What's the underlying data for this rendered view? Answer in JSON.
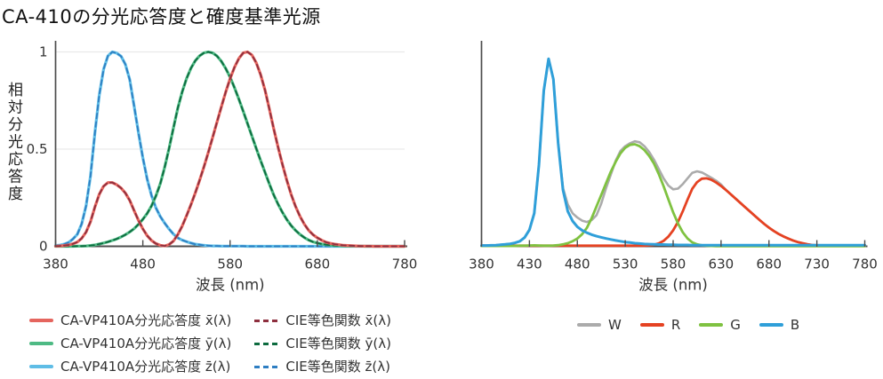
{
  "title": "CA-410の分光応答度と確度基準光源",
  "colors": {
    "axis": "#4d4d4d",
    "grid": "#e9e9e9",
    "tick_text": "#333333",
    "title_text": "#111111",
    "background": "#ffffff"
  },
  "chart_data": [
    {
      "id": "left",
      "type": "line",
      "xlabel": "波長 (nm)",
      "ylabel": "相対分光応答度",
      "xlim": [
        380,
        780
      ],
      "ylim": [
        0,
        1.05
      ],
      "x_ticks": [
        380,
        480,
        580,
        680,
        780
      ],
      "y_ticks": [
        0,
        0.5,
        1
      ],
      "grid_y": [
        0.5,
        1
      ],
      "grid": "horizontal-only",
      "legend_position": "below",
      "x_start": 380,
      "x_step": 5,
      "legend_order": [
        4,
        5,
        2,
        3,
        0,
        1
      ],
      "series": [
        {
          "name": "CA-VP410A分光応答度 z̄(λ)",
          "color": "#5fbde6",
          "style": "solid",
          "width": 3.2,
          "values": [
            0.004,
            0.006,
            0.011,
            0.02,
            0.038,
            0.062,
            0.116,
            0.208,
            0.362,
            0.583,
            0.777,
            0.911,
            0.98,
            1,
            0.994,
            0.978,
            0.936,
            0.857,
            0.722,
            0.585,
            0.456,
            0.346,
            0.261,
            0.198,
            0.153,
            0.119,
            0.089,
            0.063,
            0.044,
            0.032,
            0.024,
            0.017,
            0.011,
            0.008,
            0.005,
            0.003,
            0.002,
            0.002,
            0.001,
            0.001,
            0.001,
            0.001,
            0.001,
            0.001,
            0,
            0,
            0,
            0,
            0,
            0,
            0,
            0,
            0,
            0,
            0,
            0,
            0,
            0,
            0,
            0,
            0,
            0,
            0,
            0,
            0,
            0,
            0,
            0,
            0,
            0,
            0,
            0,
            0,
            0,
            0,
            0,
            0,
            0,
            0,
            0,
            0
          ]
        },
        {
          "name": "CIE等色関数 z̄(λ)",
          "color": "#2e7ec2",
          "style": "dashed",
          "width": 1.8,
          "same_values_as": 0
        },
        {
          "name": "CA-VP410A分光応答度 ȳ(λ)",
          "color": "#4eba84",
          "style": "solid",
          "width": 3.2,
          "values": [
            0,
            0,
            0,
            0,
            0,
            0.001,
            0.001,
            0.002,
            0.004,
            0.007,
            0.012,
            0.017,
            0.023,
            0.03,
            0.038,
            0.048,
            0.06,
            0.074,
            0.091,
            0.113,
            0.139,
            0.169,
            0.208,
            0.259,
            0.323,
            0.407,
            0.503,
            0.608,
            0.71,
            0.793,
            0.862,
            0.915,
            0.954,
            0.98,
            0.995,
            1,
            0.995,
            0.979,
            0.952,
            0.915,
            0.87,
            0.816,
            0.757,
            0.695,
            0.631,
            0.567,
            0.503,
            0.441,
            0.381,
            0.321,
            0.265,
            0.217,
            0.175,
            0.138,
            0.107,
            0.082,
            0.061,
            0.045,
            0.032,
            0.023,
            0.017,
            0.012,
            0.008,
            0.006,
            0.004,
            0.003,
            0.002,
            0.001,
            0.001,
            0.001,
            0.001,
            0,
            0,
            0,
            0,
            0,
            0,
            0,
            0,
            0,
            0
          ]
        },
        {
          "name": "CIE等色関数 ȳ(λ)",
          "color": "#0d6b3f",
          "style": "dashed",
          "width": 1.8,
          "same_values_as": 2
        },
        {
          "name": "CA-VP410A分光応答度 x̄(λ)",
          "color": "#e5655e",
          "style": "solid",
          "width": 3.2,
          "values": [
            0.001,
            0.002,
            0.004,
            0.007,
            0.013,
            0.022,
            0.041,
            0.073,
            0.127,
            0.202,
            0.267,
            0.309,
            0.328,
            0.328,
            0.317,
            0.3,
            0.274,
            0.236,
            0.184,
            0.134,
            0.09,
            0.055,
            0.03,
            0.014,
            0.005,
            0.002,
            0.009,
            0.027,
            0.06,
            0.103,
            0.156,
            0.213,
            0.273,
            0.339,
            0.408,
            0.482,
            0.56,
            0.639,
            0.717,
            0.793,
            0.863,
            0.921,
            0.966,
            0.995,
            1,
            0.984,
            0.944,
            0.883,
            0.804,
            0.707,
            0.605,
            0.51,
            0.422,
            0.34,
            0.267,
            0.206,
            0.155,
            0.114,
            0.082,
            0.06,
            0.044,
            0.031,
            0.021,
            0.015,
            0.011,
            0.008,
            0.005,
            0.004,
            0.003,
            0.002,
            0.001,
            0.001,
            0.001,
            0,
            0,
            0,
            0,
            0,
            0,
            0,
            0
          ]
        },
        {
          "name": "CIE等色関数 x̄(λ)",
          "color": "#8e2f3e",
          "style": "dashed",
          "width": 1.8,
          "same_values_as": 4
        }
      ]
    },
    {
      "id": "right",
      "type": "line",
      "xlabel": "波長 (nm)",
      "ylabel": "",
      "xlim": [
        380,
        780
      ],
      "ylim": [
        0,
        1.05
      ],
      "x_ticks": [
        380,
        430,
        480,
        530,
        580,
        630,
        680,
        730,
        780
      ],
      "y_ticks": [],
      "grid_y": [],
      "grid": "off",
      "legend_position": "below",
      "x_start": 380,
      "x_step": 5,
      "legend_order": [
        0,
        1,
        2,
        3
      ],
      "series": [
        {
          "name": "W",
          "color": "#ababab",
          "style": "solid",
          "width": 2.6,
          "values": [
            0.004,
            0.004,
            0.005,
            0.006,
            0.008,
            0.01,
            0.013,
            0.018,
            0.026,
            0.045,
            0.085,
            0.17,
            0.42,
            0.8,
            0.965,
            0.86,
            0.53,
            0.3,
            0.215,
            0.17,
            0.148,
            0.132,
            0.125,
            0.135,
            0.16,
            0.22,
            0.3,
            0.37,
            0.44,
            0.49,
            0.515,
            0.53,
            0.54,
            0.535,
            0.515,
            0.485,
            0.445,
            0.398,
            0.35,
            0.313,
            0.293,
            0.297,
            0.32,
            0.35,
            0.378,
            0.386,
            0.38,
            0.366,
            0.352,
            0.337,
            0.318,
            0.29,
            0.268,
            0.246,
            0.224,
            0.202,
            0.18,
            0.158,
            0.136,
            0.115,
            0.096,
            0.079,
            0.064,
            0.051,
            0.04,
            0.03,
            0.022,
            0.016,
            0.011,
            0.007,
            0.005,
            0.003,
            0.003,
            0.002,
            0.002,
            0.002,
            0.002,
            0.002,
            0.002,
            0.002,
            0.002
          ]
        },
        {
          "name": "R",
          "color": "#e54222",
          "style": "solid",
          "width": 2.8,
          "values": [
            0.003,
            0.003,
            0.003,
            0.003,
            0.003,
            0.003,
            0.003,
            0.003,
            0.003,
            0.003,
            0.003,
            0.003,
            0.003,
            0.003,
            0.003,
            0.003,
            0.003,
            0.003,
            0.003,
            0.003,
            0.003,
            0.003,
            0.003,
            0.003,
            0.003,
            0.003,
            0.003,
            0.003,
            0.003,
            0.003,
            0.003,
            0.003,
            0.003,
            0.003,
            0.003,
            0.005,
            0.008,
            0.015,
            0.028,
            0.05,
            0.082,
            0.125,
            0.18,
            0.24,
            0.296,
            0.33,
            0.348,
            0.35,
            0.342,
            0.328,
            0.31,
            0.29,
            0.268,
            0.246,
            0.224,
            0.202,
            0.18,
            0.158,
            0.136,
            0.115,
            0.096,
            0.079,
            0.064,
            0.051,
            0.04,
            0.03,
            0.022,
            0.016,
            0.011,
            0.007,
            0.005,
            0.003,
            0.003,
            0.002,
            0.002,
            0.002,
            0.002,
            0.002,
            0.002,
            0.002,
            0.002
          ]
        },
        {
          "name": "G",
          "color": "#7fc241",
          "style": "solid",
          "width": 2.8,
          "values": [
            0.002,
            0.002,
            0.002,
            0.002,
            0.002,
            0.002,
            0.002,
            0.002,
            0.003,
            0.003,
            0.004,
            0.005,
            0.004,
            0.003,
            0.003,
            0.004,
            0.006,
            0.01,
            0.016,
            0.026,
            0.04,
            0.062,
            0.095,
            0.145,
            0.205,
            0.265,
            0.325,
            0.385,
            0.435,
            0.478,
            0.507,
            0.522,
            0.525,
            0.515,
            0.495,
            0.465,
            0.425,
            0.372,
            0.31,
            0.242,
            0.175,
            0.118,
            0.072,
            0.04,
            0.02,
            0.01,
            0.005,
            0.003,
            0.002,
            0.001,
            0.001,
            0.001,
            0.001,
            0.001,
            0.001,
            0.001,
            0.001,
            0.001,
            0.001,
            0.001,
            0.001,
            0.001,
            0.001,
            0.001,
            0.001,
            0.001,
            0.001,
            0.001,
            0.001,
            0.001,
            0.001,
            0.001,
            0.001,
            0.001,
            0.001,
            0.001,
            0.001,
            0.001,
            0.001,
            0.001,
            0.001
          ]
        },
        {
          "name": "B",
          "color": "#2f9fd9",
          "style": "solid",
          "width": 3,
          "values": [
            0.004,
            0.004,
            0.005,
            0.006,
            0.008,
            0.01,
            0.013,
            0.018,
            0.026,
            0.045,
            0.085,
            0.17,
            0.42,
            0.8,
            0.965,
            0.86,
            0.53,
            0.29,
            0.18,
            0.13,
            0.1,
            0.082,
            0.07,
            0.06,
            0.052,
            0.046,
            0.04,
            0.035,
            0.03,
            0.026,
            0.022,
            0.019,
            0.016,
            0.014,
            0.012,
            0.011,
            0.01,
            0.009,
            0.009,
            0.008,
            0.008,
            0.007,
            0.007,
            0.007,
            0.006,
            0.006,
            0.006,
            0.006,
            0.006,
            0.006,
            0.006,
            0.006,
            0.006,
            0.006,
            0.006,
            0.006,
            0.006,
            0.006,
            0.006,
            0.006,
            0.006,
            0.006,
            0.006,
            0.006,
            0.006,
            0.006,
            0.006,
            0.006,
            0.006,
            0.006,
            0.006,
            0.006,
            0.006,
            0.006,
            0.006,
            0.006,
            0.006,
            0.006,
            0.006,
            0.006,
            0.006
          ]
        }
      ]
    }
  ]
}
